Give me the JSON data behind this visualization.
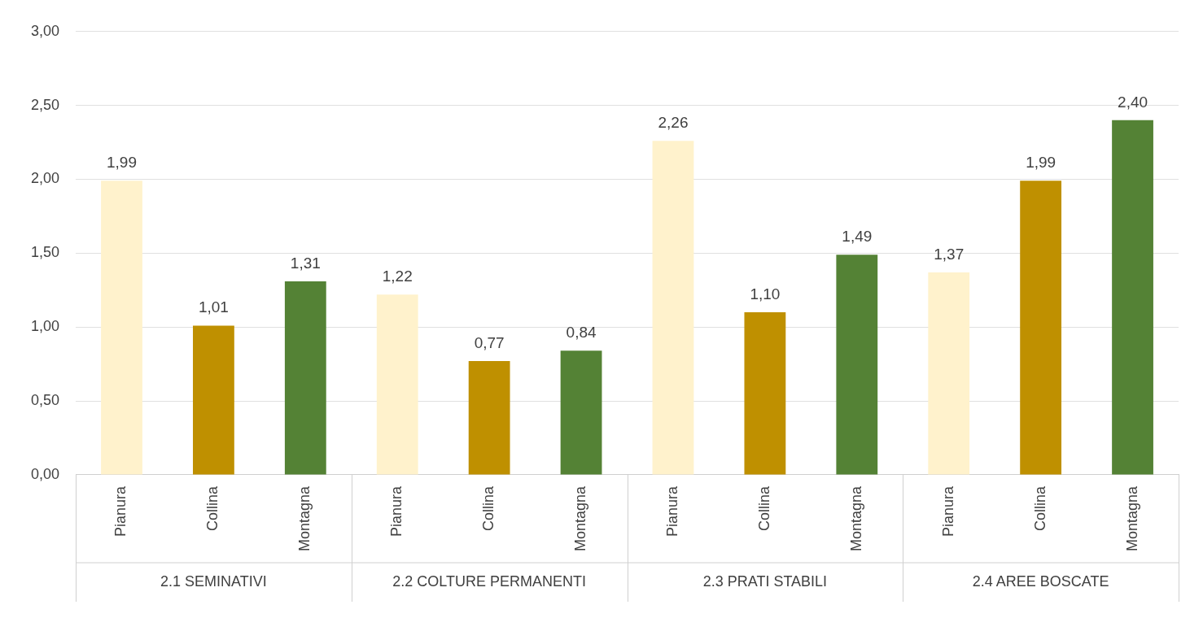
{
  "chart_data": {
    "type": "bar",
    "categories": [
      "Pianura",
      "Collina",
      "Montagna",
      "Pianura",
      "Collina",
      "Montagna",
      "Pianura",
      "Collina",
      "Montagna",
      "Pianura",
      "Collina",
      "Montagna"
    ],
    "values": [
      1.99,
      1.01,
      1.31,
      1.22,
      0.77,
      0.84,
      2.26,
      1.1,
      1.49,
      1.37,
      1.99,
      2.4
    ],
    "colors": [
      "#fff2cc",
      "#bf9000",
      "#548235",
      "#fff2cc",
      "#bf9000",
      "#548235",
      "#fff2cc",
      "#bf9000",
      "#548235",
      "#fff2cc",
      "#bf9000",
      "#548235"
    ],
    "annotations": [
      "2.1 SEMINATIVI",
      "2.2 COLTURE PERMANENTI",
      "2.3 PRATI STABILI",
      "2.4 AREE BOSCATE"
    ],
    "ylim": [
      0,
      3
    ],
    "yticks": [
      {
        "value": 0,
        "label": "0,00"
      },
      {
        "value": 0.5,
        "label": "0,50"
      },
      {
        "value": 1,
        "label": "1,00"
      },
      {
        "value": 1.5,
        "label": "1,50"
      },
      {
        "value": 2,
        "label": "2,00"
      },
      {
        "value": 2.5,
        "label": "2,50"
      },
      {
        "value": 3,
        "label": "3,00"
      }
    ],
    "value_labels": [
      "1,99",
      "1,01",
      "1,31",
      "1,22",
      "0,77",
      "0,84",
      "2,26",
      "1,10",
      "1,49",
      "1,37",
      "1,99",
      "2,40"
    ],
    "grid": "y",
    "legend": false
  }
}
